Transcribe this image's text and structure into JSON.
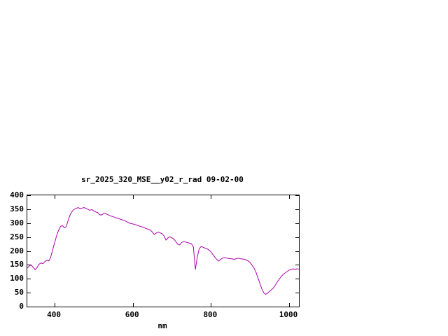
{
  "page": {
    "background": "#ffffff"
  },
  "chart_data": {
    "type": "line",
    "title": "sr_2025_320_MSE__y02_r_rad 09-02-00",
    "xlabel": "nm",
    "ylabel": "",
    "xlim": [
      330,
      1025
    ],
    "ylim": [
      0,
      400
    ],
    "x_ticks": [
      400,
      600,
      800,
      1000
    ],
    "y_ticks": [
      0,
      50,
      100,
      150,
      200,
      250,
      300,
      350,
      400
    ],
    "grid": false,
    "legend_position": "none",
    "line_color": "#aa00aa",
    "axis_color": "#000000",
    "series": [
      {
        "name": "sr_2025_320_MSE__y02_r_rad",
        "x": [
          330,
          335,
          340,
          345,
          350,
          355,
          360,
          365,
          370,
          375,
          380,
          385,
          390,
          395,
          400,
          405,
          410,
          415,
          420,
          425,
          430,
          435,
          440,
          445,
          450,
          455,
          460,
          465,
          470,
          475,
          480,
          485,
          490,
          495,
          500,
          505,
          510,
          515,
          520,
          525,
          530,
          535,
          540,
          545,
          550,
          555,
          560,
          565,
          570,
          575,
          580,
          585,
          590,
          595,
          600,
          605,
          610,
          615,
          620,
          625,
          630,
          635,
          640,
          645,
          650,
          655,
          660,
          665,
          670,
          675,
          680,
          685,
          690,
          695,
          700,
          705,
          710,
          715,
          720,
          725,
          730,
          735,
          740,
          745,
          750,
          755,
          760,
          765,
          770,
          775,
          780,
          785,
          790,
          795,
          800,
          805,
          810,
          815,
          820,
          825,
          830,
          835,
          840,
          845,
          850,
          855,
          860,
          865,
          870,
          875,
          880,
          885,
          890,
          895,
          900,
          905,
          910,
          915,
          920,
          925,
          930,
          935,
          940,
          945,
          950,
          955,
          960,
          965,
          970,
          975,
          980,
          985,
          990,
          995,
          1000,
          1005,
          1010,
          1015,
          1020,
          1025
        ],
        "y": [
          138,
          146,
          150,
          141,
          133,
          140,
          152,
          157,
          154,
          162,
          167,
          164,
          178,
          205,
          230,
          255,
          274,
          288,
          291,
          283,
          288,
          312,
          331,
          343,
          350,
          353,
          356,
          352,
          354,
          356,
          353,
          350,
          346,
          349,
          344,
          340,
          338,
          330,
          329,
          334,
          336,
          331,
          328,
          325,
          323,
          320,
          318,
          316,
          313,
          311,
          308,
          305,
          301,
          298,
          297,
          295,
          293,
          290,
          288,
          286,
          283,
          280,
          278,
          275,
          268,
          259,
          264,
          268,
          265,
          262,
          254,
          239,
          247,
          251,
          247,
          243,
          234,
          224,
          222,
          230,
          234,
          232,
          230,
          228,
          226,
          214,
          133,
          178,
          208,
          216,
          213,
          210,
          208,
          203,
          197,
          187,
          177,
          169,
          164,
          170,
          174,
          176,
          174,
          173,
          172,
          171,
          170,
          172,
          174,
          172,
          171,
          170,
          168,
          164,
          159,
          149,
          139,
          124,
          104,
          84,
          64,
          50,
          44,
          48,
          55,
          61,
          68,
          78,
          89,
          99,
          109,
          116,
          121,
          126,
          131,
          133,
          136,
          133,
          136,
          134
        ]
      }
    ]
  }
}
